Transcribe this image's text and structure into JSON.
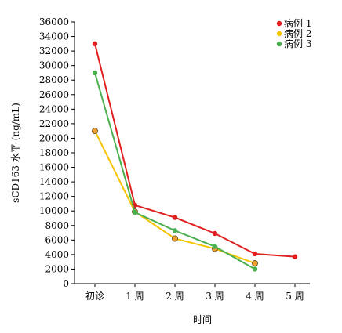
{
  "chart_data": {
    "type": "line",
    "title": "",
    "xlabel": "时间",
    "ylabel": "sCD163 水平 (ng/mL)",
    "categories": [
      "初诊",
      "1 周",
      "2 周",
      "3 周",
      "4 周",
      "5 周"
    ],
    "ylim": [
      0,
      36000
    ],
    "ytick_step": 2000,
    "ytick_labels": [
      "0",
      "2000",
      "4000",
      "6000",
      "8000",
      "10000",
      "12000",
      "14000",
      "16000",
      "18000",
      "20000",
      "22000",
      "24000",
      "26000",
      "28000",
      "30000",
      "32000",
      "34000",
      "36000"
    ],
    "grid": false,
    "legend_position": "top-right",
    "series": [
      {
        "name": "病例 1",
        "color": "#e02020",
        "values": [
          33000,
          10800,
          9100,
          6900,
          4100,
          3700
        ]
      },
      {
        "name": "病例 2",
        "color": "#f5c400",
        "marker_fill": "#f0a030",
        "values": [
          21000,
          9900,
          6200,
          4800,
          2800,
          null
        ]
      },
      {
        "name": "病例 3",
        "color": "#4caf50",
        "values": [
          29000,
          9800,
          7300,
          5100,
          2000,
          null
        ]
      }
    ]
  }
}
